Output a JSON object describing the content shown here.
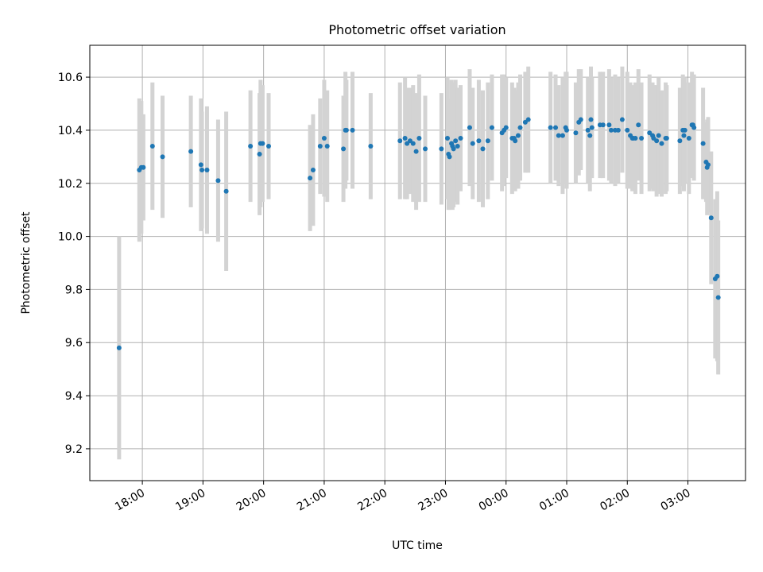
{
  "chart_data": {
    "type": "scatter",
    "title": "Photometric offset variation",
    "xlabel": "UTC time",
    "ylabel": "Photometric offset",
    "grid": true,
    "x_ticks": [
      "18:00",
      "19:00",
      "20:00",
      "21:00",
      "22:00",
      "23:00",
      "00:00",
      "01:00",
      "02:00",
      "03:00"
    ],
    "y_ticks": [
      "9.2",
      "9.4",
      "9.6",
      "9.8",
      "10.0",
      "10.2",
      "10.4",
      "10.6"
    ],
    "xlim": [
      "17:08",
      "03:57"
    ],
    "ylim": [
      9.08,
      10.72
    ],
    "colors": {
      "point": "#1f77b4",
      "errorbar": "#d3d3d3",
      "grid": "#b0b0b0"
    },
    "series": [
      {
        "points": [
          [
            "17:37",
            9.58,
            0.42
          ],
          [
            "17:57",
            10.25,
            0.27
          ],
          [
            "17:59",
            10.26,
            0.25
          ],
          [
            "18:01",
            10.26,
            0.2
          ],
          [
            "18:10",
            10.34,
            0.24
          ],
          [
            "18:20",
            10.3,
            0.23
          ],
          [
            "18:48",
            10.32,
            0.21
          ],
          [
            "18:58",
            10.27,
            0.25
          ],
          [
            "18:59",
            10.25,
            0.22
          ],
          [
            "19:04",
            10.25,
            0.24
          ],
          [
            "19:15",
            10.21,
            0.23
          ],
          [
            "19:23",
            10.17,
            0.3
          ],
          [
            "19:47",
            10.34,
            0.21
          ],
          [
            "19:56",
            10.31,
            0.23
          ],
          [
            "19:57",
            10.35,
            0.24
          ],
          [
            "19:59",
            10.35,
            0.22
          ],
          [
            "20:05",
            10.34,
            0.2
          ],
          [
            "20:46",
            10.22,
            0.2
          ],
          [
            "20:49",
            10.25,
            0.21
          ],
          [
            "20:56",
            10.34,
            0.18
          ],
          [
            "21:00",
            10.37,
            0.22
          ],
          [
            "21:03",
            10.34,
            0.21
          ],
          [
            "21:19",
            10.33,
            0.2
          ],
          [
            "21:21",
            10.4,
            0.22
          ],
          [
            "21:22",
            10.4,
            0.19
          ],
          [
            "21:28",
            10.4,
            0.22
          ],
          [
            "21:46",
            10.34,
            0.2
          ],
          [
            "22:15",
            10.36,
            0.22
          ],
          [
            "22:20",
            10.37,
            0.23
          ],
          [
            "22:22",
            10.35,
            0.21
          ],
          [
            "22:25",
            10.36,
            0.2
          ],
          [
            "22:28",
            10.35,
            0.22
          ],
          [
            "22:31",
            10.32,
            0.22
          ],
          [
            "22:34",
            10.37,
            0.24
          ],
          [
            "22:40",
            10.33,
            0.2
          ],
          [
            "22:56",
            10.33,
            0.21
          ],
          [
            "23:02",
            10.37,
            0.23
          ],
          [
            "23:03",
            10.31,
            0.21
          ],
          [
            "23:04",
            10.3,
            0.2
          ],
          [
            "23:06",
            10.35,
            0.24
          ],
          [
            "23:07",
            10.34,
            0.24
          ],
          [
            "23:08",
            10.33,
            0.22
          ],
          [
            "23:10",
            10.36,
            0.23
          ],
          [
            "23:12",
            10.34,
            0.22
          ],
          [
            "23:15",
            10.37,
            0.2
          ],
          [
            "23:24",
            10.41,
            0.22
          ],
          [
            "23:27",
            10.35,
            0.21
          ],
          [
            "23:33",
            10.36,
            0.23
          ],
          [
            "23:37",
            10.33,
            0.22
          ],
          [
            "23:42",
            10.36,
            0.22
          ],
          [
            "23:46",
            10.41,
            0.2
          ],
          [
            "23:56",
            10.39,
            0.22
          ],
          [
            "23:58",
            10.4,
            0.21
          ],
          [
            "00:00",
            10.41,
            0.19
          ],
          [
            "00:06",
            10.37,
            0.21
          ],
          [
            "00:08",
            10.37,
            0.19
          ],
          [
            "00:09",
            10.36,
            0.19
          ],
          [
            "00:12",
            10.38,
            0.2
          ],
          [
            "00:14",
            10.41,
            0.2
          ],
          [
            "00:19",
            10.43,
            0.19
          ],
          [
            "00:22",
            10.44,
            0.2
          ],
          [
            "00:44",
            10.41,
            0.21
          ],
          [
            "00:49",
            10.41,
            0.2
          ],
          [
            "00:52",
            10.38,
            0.19
          ],
          [
            "00:56",
            10.38,
            0.22
          ],
          [
            "00:59",
            10.41,
            0.21
          ],
          [
            "01:00",
            10.4,
            0.22
          ],
          [
            "01:09",
            10.39,
            0.19
          ],
          [
            "01:12",
            10.43,
            0.2
          ],
          [
            "01:14",
            10.44,
            0.19
          ],
          [
            "01:21",
            10.4,
            0.2
          ],
          [
            "01:23",
            10.38,
            0.21
          ],
          [
            "01:24",
            10.44,
            0.2
          ],
          [
            "01:25",
            10.41,
            0.19
          ],
          [
            "01:33",
            10.42,
            0.2
          ],
          [
            "01:36",
            10.42,
            0.2
          ],
          [
            "01:42",
            10.42,
            0.21
          ],
          [
            "01:44",
            10.4,
            0.2
          ],
          [
            "01:48",
            10.4,
            0.21
          ],
          [
            "01:51",
            10.4,
            0.2
          ],
          [
            "01:55",
            10.44,
            0.2
          ],
          [
            "02:00",
            10.4,
            0.22
          ],
          [
            "02:03",
            10.38,
            0.2
          ],
          [
            "02:05",
            10.37,
            0.2
          ],
          [
            "02:06",
            10.37,
            0.19
          ],
          [
            "02:08",
            10.37,
            0.21
          ],
          [
            "02:11",
            10.42,
            0.21
          ],
          [
            "02:14",
            10.37,
            0.21
          ],
          [
            "02:22",
            10.39,
            0.22
          ],
          [
            "02:25",
            10.38,
            0.2
          ],
          [
            "02:26",
            10.37,
            0.2
          ],
          [
            "02:29",
            10.36,
            0.21
          ],
          [
            "02:31",
            10.38,
            0.22
          ],
          [
            "02:34",
            10.35,
            0.2
          ],
          [
            "02:38",
            10.37,
            0.21
          ],
          [
            "02:39",
            10.37,
            0.2
          ],
          [
            "02:52",
            10.36,
            0.2
          ],
          [
            "02:55",
            10.4,
            0.21
          ],
          [
            "02:56",
            10.38,
            0.21
          ],
          [
            "02:57",
            10.4,
            0.2
          ],
          [
            "03:01",
            10.37,
            0.21
          ],
          [
            "03:04",
            10.42,
            0.2
          ],
          [
            "03:05",
            10.42,
            0.18
          ],
          [
            "03:06",
            10.41,
            0.2
          ],
          [
            "03:15",
            10.35,
            0.21
          ],
          [
            "03:18",
            10.28,
            0.15
          ],
          [
            "03:19",
            10.26,
            0.18
          ],
          [
            "03:20",
            10.27,
            0.18
          ],
          [
            "03:23",
            10.07,
            0.25
          ],
          [
            "03:27",
            9.84,
            0.3
          ],
          [
            "03:29",
            9.85,
            0.32
          ],
          [
            "03:30",
            9.77,
            0.29
          ]
        ]
      }
    ]
  }
}
